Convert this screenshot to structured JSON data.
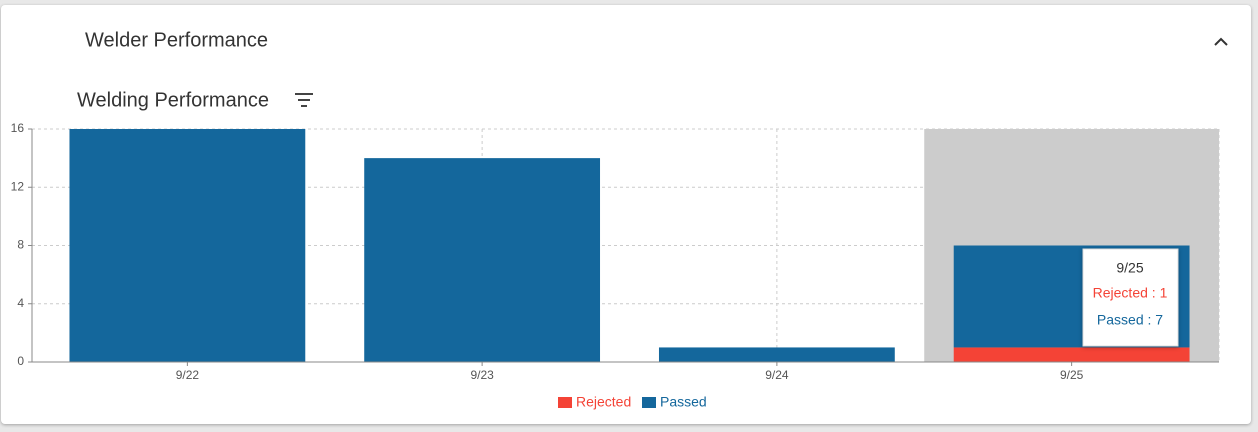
{
  "panel_title": "Welder Performance",
  "chart_data": {
    "type": "stacked_bar",
    "title": "Welding Performance",
    "categories": [
      "9/22",
      "9/23",
      "9/24",
      "9/25"
    ],
    "series": [
      {
        "name": "Rejected",
        "color": "#f44336",
        "values": [
          0,
          0,
          0,
          1
        ]
      },
      {
        "name": "Passed",
        "color": "#14679c",
        "values": [
          16,
          14,
          1,
          7
        ]
      }
    ],
    "ylim": [
      0,
      16
    ],
    "yticks": [
      0,
      4,
      8,
      12,
      16
    ],
    "grid": true,
    "legend": "bottom",
    "tooltip": {
      "title": "9/25",
      "lines": [
        "Rejected : 1",
        "Passed : 7"
      ]
    }
  }
}
